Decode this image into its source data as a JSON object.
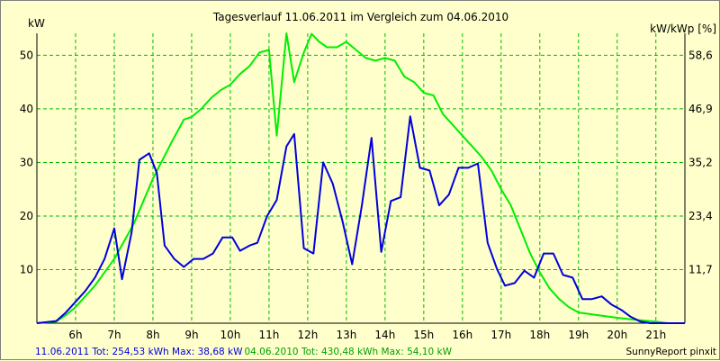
{
  "chart_data": {
    "type": "line",
    "title": "Tagesverlauf 11.06.2011 im Vergleich zum 04.06.2010",
    "ylabel_left": "kW",
    "ylabel_right": "kW/kWp [%]",
    "ylim": [
      0,
      54.1
    ],
    "y_ticks": [
      10,
      20,
      30,
      40,
      50
    ],
    "y_ticks_right": [
      "11,7",
      "23,4",
      "35,2",
      "46,9",
      "58,6"
    ],
    "xlim": [
      5.0,
      21.75
    ],
    "x_ticks": [
      6,
      7,
      8,
      9,
      10,
      11,
      12,
      13,
      14,
      15,
      16,
      17,
      18,
      19,
      20,
      21
    ],
    "x_tick_labels": [
      "6h",
      "7h",
      "8h",
      "9h",
      "10h",
      "11h",
      "12h",
      "13h",
      "14h",
      "15h",
      "16h",
      "17h",
      "18h",
      "19h",
      "20h",
      "21h"
    ],
    "grid": true,
    "series": [
      {
        "name": "11.06.2011",
        "color": "#0000dd",
        "x": [
          5.0,
          5.5,
          5.75,
          6.0,
          6.25,
          6.5,
          6.75,
          7.0,
          7.2,
          7.45,
          7.65,
          7.9,
          8.1,
          8.3,
          8.55,
          8.8,
          9.05,
          9.3,
          9.55,
          9.8,
          10.05,
          10.25,
          10.5,
          10.7,
          10.95,
          11.2,
          11.45,
          11.65,
          11.9,
          12.15,
          12.4,
          12.65,
          12.9,
          13.15,
          13.4,
          13.65,
          13.9,
          14.15,
          14.4,
          14.65,
          14.9,
          15.15,
          15.4,
          15.65,
          15.9,
          16.15,
          16.4,
          16.65,
          16.9,
          17.1,
          17.35,
          17.6,
          17.85,
          18.1,
          18.35,
          18.6,
          18.85,
          19.1,
          19.35,
          19.6,
          19.85,
          20.1,
          20.35,
          20.6,
          20.85,
          21.05,
          21.25,
          21.75
        ],
        "y": [
          0,
          0.4,
          2.0,
          4.0,
          6.0,
          8.5,
          12.0,
          17.7,
          8.2,
          17.0,
          30.5,
          31.7,
          28.0,
          14.5,
          12.0,
          10.5,
          12.0,
          12.0,
          13.0,
          16.0,
          16.0,
          13.5,
          14.5,
          15.0,
          20.0,
          23.0,
          33.0,
          35.3,
          14.0,
          13.0,
          30.0,
          26.0,
          19.0,
          11.0,
          22.0,
          34.6,
          13.3,
          22.8,
          23.5,
          38.6,
          29.0,
          28.5,
          22.0,
          24.0,
          29.0,
          29.0,
          29.8,
          15.0,
          10.0,
          7.0,
          7.5,
          9.8,
          8.5,
          13.0,
          13.0,
          9.0,
          8.5,
          4.5,
          4.5,
          5.0,
          3.5,
          2.5,
          1.2,
          0.3,
          0,
          0,
          0,
          0
        ]
      },
      {
        "name": "04.06.2010",
        "color": "#00ee00",
        "x": [
          5.0,
          5.5,
          5.75,
          6.0,
          6.5,
          7.0,
          7.5,
          8.0,
          8.5,
          8.8,
          9.0,
          9.25,
          9.5,
          9.75,
          10.0,
          10.25,
          10.5,
          10.75,
          11.0,
          11.2,
          11.45,
          11.65,
          11.9,
          12.1,
          12.3,
          12.5,
          12.75,
          13.0,
          13.25,
          13.5,
          13.75,
          14.0,
          14.25,
          14.5,
          14.75,
          15.0,
          15.25,
          15.5,
          15.75,
          16.0,
          16.25,
          16.5,
          16.75,
          17.0,
          17.25,
          17.5,
          17.75,
          18.0,
          18.25,
          18.5,
          18.75,
          19.0,
          19.5,
          20.0,
          20.5,
          21.0,
          21.3,
          21.75
        ],
        "y": [
          0,
          0.3,
          1.5,
          3.0,
          7.0,
          12.0,
          18.5,
          27.0,
          34.0,
          38.0,
          38.5,
          40.0,
          42.0,
          43.5,
          44.5,
          46.5,
          48.0,
          50.5,
          51.0,
          35.0,
          54.1,
          45.0,
          50.5,
          54.0,
          52.5,
          51.5,
          51.5,
          52.5,
          51.0,
          49.5,
          49.0,
          49.5,
          49.0,
          46.0,
          45.0,
          43.0,
          42.5,
          39.0,
          37.0,
          35.0,
          33.0,
          31.0,
          28.5,
          25.0,
          22.0,
          17.5,
          13.0,
          9.5,
          6.5,
          4.5,
          3.0,
          2.0,
          1.5,
          1.0,
          0.6,
          0.3,
          0,
          0
        ]
      }
    ]
  },
  "footer": {
    "series1_text": "11.06.2011 Tot: 254,53 kWh Max: 38,68 kW",
    "series2_text": "04.06.2010 Tot: 430,48 kWh Max: 54,10 kW",
    "brand": "SunnyReport pinxit"
  }
}
